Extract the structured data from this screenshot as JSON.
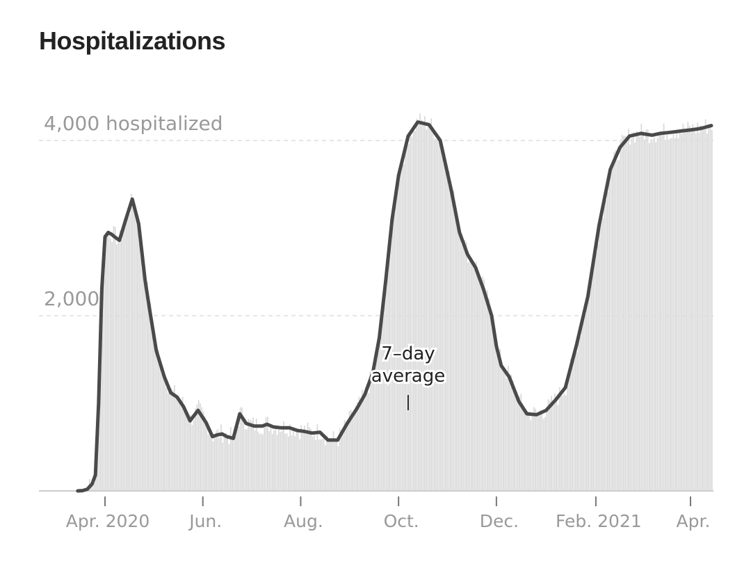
{
  "title": "Hospitalizations",
  "chart_data": {
    "type": "bar",
    "title": "Hospitalizations",
    "xlabel": "",
    "ylabel": "",
    "ylim": [
      0,
      4500
    ],
    "grid": "horizontal dashed at 2,000 and 4,000",
    "colors": {
      "bars": "#d9d9d9",
      "line": "#4a4a4a",
      "grid": "#dddddd",
      "axis": "#cccccc",
      "labels": "#999999"
    },
    "y_ticks": [
      {
        "value": 2000,
        "label": "2,000"
      },
      {
        "value": 4000,
        "label": "4,000 hospitalized"
      }
    ],
    "x_ticks": [
      {
        "date": "2020-04-01",
        "label": "Apr. 2020"
      },
      {
        "date": "2020-06-01",
        "label": "Jun."
      },
      {
        "date": "2020-08-01",
        "label": "Aug."
      },
      {
        "date": "2020-10-01",
        "label": "Oct."
      },
      {
        "date": "2020-12-01",
        "label": "Dec."
      },
      {
        "date": "2021-02-01",
        "label": "Feb. 2021"
      },
      {
        "date": "2021-04-01",
        "label": "Apr."
      }
    ],
    "annotation": {
      "lines": [
        "7–day",
        "average"
      ],
      "date": "2020-10-07"
    },
    "series": [
      {
        "name": "7–day average",
        "dates": [
          "2020-03-15",
          "2020-03-18",
          "2020-03-21",
          "2020-03-24",
          "2020-03-26",
          "2020-03-28",
          "2020-03-30",
          "2020-04-01",
          "2020-04-03",
          "2020-04-05",
          "2020-04-07",
          "2020-04-10",
          "2020-04-14",
          "2020-04-18",
          "2020-04-22",
          "2020-04-26",
          "2020-04-29",
          "2020-05-03",
          "2020-05-08",
          "2020-05-12",
          "2020-05-16",
          "2020-05-20",
          "2020-05-24",
          "2020-05-29",
          "2020-06-03",
          "2020-06-07",
          "2020-06-10",
          "2020-06-13",
          "2020-06-16",
          "2020-06-20",
          "2020-06-24",
          "2020-06-28",
          "2020-07-03",
          "2020-07-08",
          "2020-07-11",
          "2020-07-15",
          "2020-07-20",
          "2020-07-25",
          "2020-07-30",
          "2020-08-03",
          "2020-08-08",
          "2020-08-13",
          "2020-08-18",
          "2020-08-24",
          "2020-08-30",
          "2020-09-05",
          "2020-09-10",
          "2020-09-15",
          "2020-09-19",
          "2020-09-23",
          "2020-09-27",
          "2020-10-01",
          "2020-10-07",
          "2020-10-13",
          "2020-10-20",
          "2020-10-27",
          "2020-11-03",
          "2020-11-08",
          "2020-11-13",
          "2020-11-18",
          "2020-11-23",
          "2020-11-28",
          "2020-12-01",
          "2020-12-04",
          "2020-12-09",
          "2020-12-15",
          "2020-12-20",
          "2020-12-26",
          "2021-01-01",
          "2021-01-07",
          "2021-01-13",
          "2021-01-20",
          "2021-01-27",
          "2021-02-03",
          "2021-02-10",
          "2021-02-16",
          "2021-02-22",
          "2021-03-01",
          "2021-03-08",
          "2021-03-13",
          "2021-03-18",
          "2021-03-23",
          "2021-03-27",
          "2021-04-01",
          "2021-04-05",
          "2021-04-08",
          "2021-04-10",
          "2021-04-12",
          "2021-04-14"
        ],
        "values": [
          0,
          3,
          20,
          80,
          180,
          1000,
          2300,
          2900,
          2950,
          2930,
          2900,
          2860,
          3100,
          3330,
          3050,
          2400,
          2050,
          1600,
          1300,
          1120,
          1070,
          960,
          800,
          920,
          780,
          620,
          640,
          650,
          620,
          600,
          880,
          770,
          740,
          740,
          760,
          730,
          720,
          720,
          690,
          680,
          660,
          670,
          580,
          580,
          770,
          940,
          1100,
          1350,
          1750,
          2400,
          3100,
          3600,
          4050,
          4210,
          4180,
          4000,
          3420,
          2950,
          2700,
          2550,
          2300,
          2000,
          1650,
          1430,
          1300,
          1020,
          880,
          870,
          920,
          1040,
          1180,
          1670,
          2220,
          3030,
          3670,
          3920,
          4050,
          4080,
          4060,
          4080,
          4090,
          4100,
          4110,
          4120,
          4130,
          4140,
          4150,
          4160,
          4170
        ]
      }
    ]
  }
}
